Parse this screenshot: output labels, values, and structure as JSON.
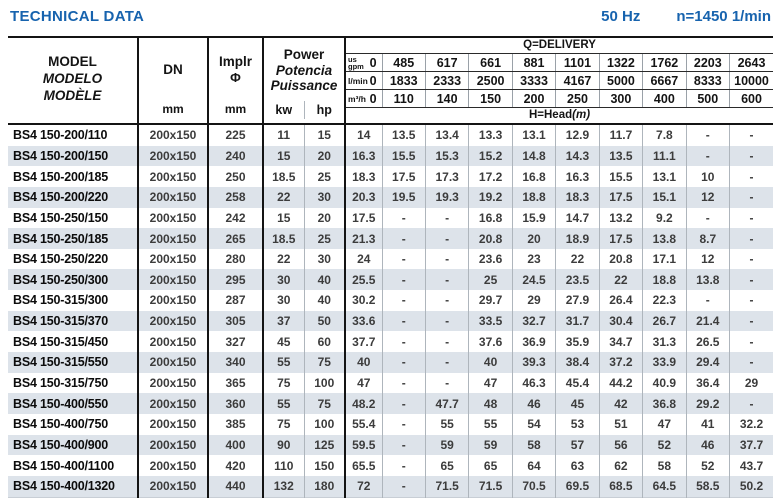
{
  "title": "TECHNICAL DATA",
  "frequency": "50 Hz",
  "speed": "n=1450 1/min",
  "colors": {
    "accent": "#1763ae",
    "stripe": "#dde3ea",
    "grid_thick": "#141414",
    "grid_thin": "#aeb5bc"
  },
  "header": {
    "model": {
      "line1": "MODEL",
      "line2": "MODELO",
      "line3": "MODÈLE"
    },
    "dn": {
      "label": "DN",
      "unit": "mm"
    },
    "impeller": {
      "label": "Implr",
      "symbol": "Φ",
      "unit": "mm"
    },
    "power": {
      "line1": "Power",
      "line2": "Potencia",
      "line3": "Puissance",
      "unit_kw": "kw",
      "unit_hp": "hp"
    },
    "delivery": {
      "title": "Q=DELIVERY",
      "unit_rows": [
        {
          "unit_top": "us",
          "unit_bottom": "gpm",
          "values": [
            "0",
            "485",
            "617",
            "661",
            "881",
            "1101",
            "1322",
            "1762",
            "2203",
            "2643"
          ]
        },
        {
          "unit": "l/min",
          "values": [
            "0",
            "1833",
            "2333",
            "2500",
            "3333",
            "4167",
            "5000",
            "6667",
            "8333",
            "10000"
          ]
        },
        {
          "unit": "m³/h",
          "values": [
            "0",
            "110",
            "140",
            "150",
            "200",
            "250",
            "300",
            "400",
            "500",
            "600"
          ]
        }
      ],
      "head_label": "H=Head",
      "head_unit": "(m)"
    }
  },
  "rows": [
    {
      "model": "BS4 150-200/110",
      "dn": "200x150",
      "impeller": "225",
      "kw": "11",
      "hp": "15",
      "head": [
        "14",
        "13.5",
        "13.4",
        "13.3",
        "13.1",
        "12.9",
        "11.7",
        "7.8",
        "-",
        "-"
      ]
    },
    {
      "model": "BS4 150-200/150",
      "dn": "200x150",
      "impeller": "240",
      "kw": "15",
      "hp": "20",
      "head": [
        "16.3",
        "15.5",
        "15.3",
        "15.2",
        "14.8",
        "14.3",
        "13.5",
        "11.1",
        "-",
        "-"
      ]
    },
    {
      "model": "BS4 150-200/185",
      "dn": "200x150",
      "impeller": "250",
      "kw": "18.5",
      "hp": "25",
      "head": [
        "18.3",
        "17.5",
        "17.3",
        "17.2",
        "16.8",
        "16.3",
        "15.5",
        "13.1",
        "10",
        "-"
      ]
    },
    {
      "model": "BS4 150-200/220",
      "dn": "200x150",
      "impeller": "258",
      "kw": "22",
      "hp": "30",
      "head": [
        "20.3",
        "19.5",
        "19.3",
        "19.2",
        "18.8",
        "18.3",
        "17.5",
        "15.1",
        "12",
        "-"
      ]
    },
    {
      "model": "BS4 150-250/150",
      "dn": "200x150",
      "impeller": "242",
      "kw": "15",
      "hp": "20",
      "head": [
        "17.5",
        "-",
        "-",
        "16.8",
        "15.9",
        "14.7",
        "13.2",
        "9.2",
        "-",
        "-"
      ]
    },
    {
      "model": "BS4 150-250/185",
      "dn": "200x150",
      "impeller": "265",
      "kw": "18.5",
      "hp": "25",
      "head": [
        "21.3",
        "-",
        "-",
        "20.8",
        "20",
        "18.9",
        "17.5",
        "13.8",
        "8.7",
        "-"
      ]
    },
    {
      "model": "BS4 150-250/220",
      "dn": "200x150",
      "impeller": "280",
      "kw": "22",
      "hp": "30",
      "head": [
        "24",
        "-",
        "-",
        "23.6",
        "23",
        "22",
        "20.8",
        "17.1",
        "12",
        "-"
      ]
    },
    {
      "model": "BS4 150-250/300",
      "dn": "200x150",
      "impeller": "295",
      "kw": "30",
      "hp": "40",
      "head": [
        "25.5",
        "-",
        "-",
        "25",
        "24.5",
        "23.5",
        "22",
        "18.8",
        "13.8",
        "-"
      ]
    },
    {
      "model": "BS4 150-315/300",
      "dn": "200x150",
      "impeller": "287",
      "kw": "30",
      "hp": "40",
      "head": [
        "30.2",
        "-",
        "-",
        "29.7",
        "29",
        "27.9",
        "26.4",
        "22.3",
        "-",
        "-"
      ]
    },
    {
      "model": "BS4 150-315/370",
      "dn": "200x150",
      "impeller": "305",
      "kw": "37",
      "hp": "50",
      "head": [
        "33.6",
        "-",
        "-",
        "33.5",
        "32.7",
        "31.7",
        "30.4",
        "26.7",
        "21.4",
        "-"
      ]
    },
    {
      "model": "BS4 150-315/450",
      "dn": "200x150",
      "impeller": "327",
      "kw": "45",
      "hp": "60",
      "head": [
        "37.7",
        "-",
        "-",
        "37.6",
        "36.9",
        "35.9",
        "34.7",
        "31.3",
        "26.5",
        "-"
      ]
    },
    {
      "model": "BS4 150-315/550",
      "dn": "200x150",
      "impeller": "340",
      "kw": "55",
      "hp": "75",
      "head": [
        "40",
        "-",
        "-",
        "40",
        "39.3",
        "38.4",
        "37.2",
        "33.9",
        "29.4",
        "-"
      ]
    },
    {
      "model": "BS4 150-315/750",
      "dn": "200x150",
      "impeller": "365",
      "kw": "75",
      "hp": "100",
      "head": [
        "47",
        "-",
        "-",
        "47",
        "46.3",
        "45.4",
        "44.2",
        "40.9",
        "36.4",
        "29"
      ]
    },
    {
      "model": "BS4 150-400/550",
      "dn": "200x150",
      "impeller": "360",
      "kw": "55",
      "hp": "75",
      "head": [
        "48.2",
        "-",
        "47.7",
        "48",
        "46",
        "45",
        "42",
        "36.8",
        "29.2",
        "-"
      ]
    },
    {
      "model": "BS4 150-400/750",
      "dn": "200x150",
      "impeller": "385",
      "kw": "75",
      "hp": "100",
      "head": [
        "55.4",
        "-",
        "55",
        "55",
        "54",
        "53",
        "51",
        "47",
        "41",
        "32.2"
      ]
    },
    {
      "model": "BS4 150-400/900",
      "dn": "200x150",
      "impeller": "400",
      "kw": "90",
      "hp": "125",
      "head": [
        "59.5",
        "-",
        "59",
        "59",
        "58",
        "57",
        "56",
        "52",
        "46",
        "37.7"
      ]
    },
    {
      "model": "BS4 150-400/1100",
      "dn": "200x150",
      "impeller": "420",
      "kw": "110",
      "hp": "150",
      "head": [
        "65.5",
        "-",
        "65",
        "65",
        "64",
        "63",
        "62",
        "58",
        "52",
        "43.7"
      ]
    },
    {
      "model": "BS4 150-400/1320",
      "dn": "200x150",
      "impeller": "440",
      "kw": "132",
      "hp": "180",
      "head": [
        "72",
        "-",
        "71.5",
        "71.5",
        "70.5",
        "69.5",
        "68.5",
        "64.5",
        "58.5",
        "50.2"
      ]
    }
  ]
}
